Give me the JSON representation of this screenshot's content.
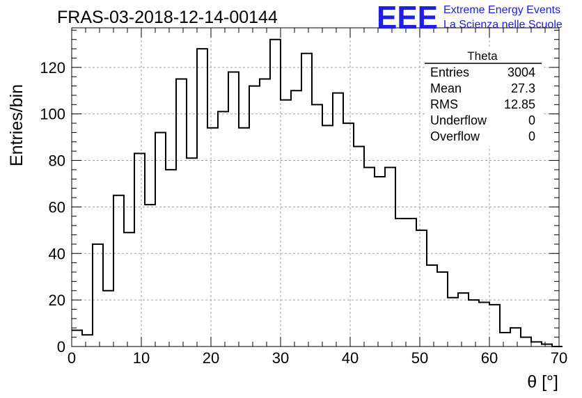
{
  "title": "FRAS-03-2018-12-14-00144",
  "logo": {
    "mark": "EEE",
    "line1": "Extreme Energy Events",
    "line2": "La Scienza nelle Scuole",
    "color": "#1e1ee6"
  },
  "stats": {
    "name": "Theta",
    "rows": [
      {
        "label": "Entries",
        "value": "3004"
      },
      {
        "label": "Mean",
        "value": "27.3"
      },
      {
        "label": "RMS",
        "value": "12.85"
      },
      {
        "label": "Underflow",
        "value": "0"
      },
      {
        "label": "Overflow",
        "value": "0"
      }
    ]
  },
  "chart_data": {
    "type": "bar",
    "style": "step-histogram",
    "xlabel": "θ [°]",
    "ylabel": "Entries/bin",
    "xlim": [
      0,
      70
    ],
    "ylim": [
      0,
      137
    ],
    "grid": true,
    "bin_width": 1.5,
    "x_start": 0,
    "xticks": [
      0,
      10,
      20,
      30,
      40,
      50,
      60,
      70
    ],
    "yticks": [
      0,
      20,
      40,
      60,
      80,
      100,
      120
    ],
    "xtick_labels": [
      "0",
      "10",
      "20",
      "30",
      "40",
      "50",
      "60",
      "70"
    ],
    "ytick_labels": [
      "0",
      "20",
      "40",
      "60",
      "80",
      "100",
      "120"
    ],
    "values": [
      7,
      5,
      44,
      24,
      65,
      49,
      83,
      61,
      92,
      76,
      115,
      81,
      128,
      94,
      101,
      118,
      94,
      112,
      115,
      132,
      106,
      110,
      126,
      104,
      95,
      109,
      96,
      86,
      77,
      73,
      77,
      55,
      55,
      50,
      35,
      32,
      21,
      23,
      20,
      19,
      18,
      6,
      8,
      4,
      2,
      1,
      0
    ]
  }
}
